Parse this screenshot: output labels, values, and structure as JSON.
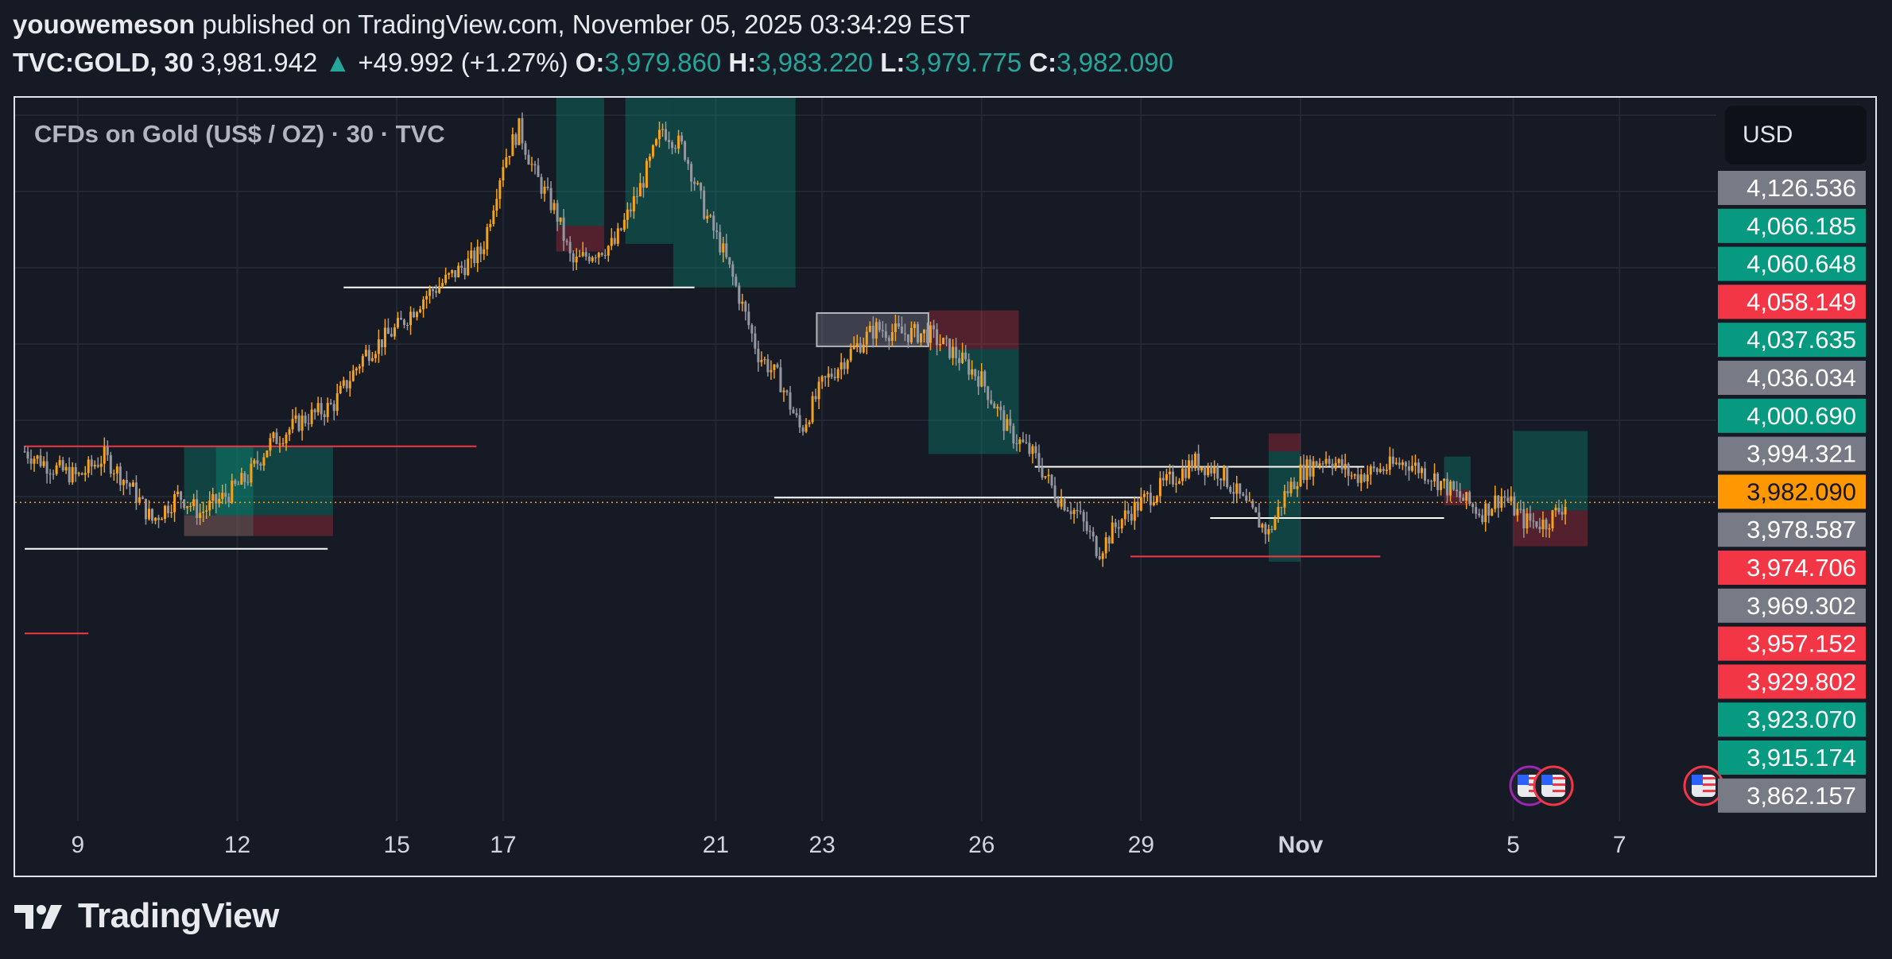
{
  "header": {
    "author": "youowemeson",
    "published_text": "published on TradingView.com, November 05, 2025 03:34:29 EST",
    "symbol": "TVC:GOLD, 30",
    "price": "3,981.942",
    "change": "+49.992 (+1.27%)",
    "open_label": "O:",
    "open": "3,979.860",
    "high_label": "H:",
    "high": "3,983.220",
    "low_label": "L:",
    "low": "3,979.775",
    "close_label": "C:",
    "close": "3,982.090"
  },
  "currency_button": "USD",
  "footer": {
    "brand": "TradingView"
  },
  "chart_data": {
    "type": "candlestick",
    "title": "CFDs on Gold (US$ / OZ) · 30 · TVC",
    "x_ticks": [
      {
        "label": "9",
        "t": 1
      },
      {
        "label": "12",
        "t": 4
      },
      {
        "label": "15",
        "t": 7
      },
      {
        "label": "17",
        "t": 9
      },
      {
        "label": "21",
        "t": 13
      },
      {
        "label": "23",
        "t": 15
      },
      {
        "label": "26",
        "t": 18
      },
      {
        "label": "29",
        "t": 21
      },
      {
        "label": "Nov",
        "t": 24
      },
      {
        "label": "5",
        "t": 28
      },
      {
        "label": "7",
        "t": 30
      }
    ],
    "x_range": [
      0,
      32
    ],
    "y_range": [
      3861,
      4140
    ],
    "price_labels": [
      {
        "value": "4,126.536",
        "color": "#787b86"
      },
      {
        "value": "4,066.185",
        "color": "#089981"
      },
      {
        "value": "4,060.648",
        "color": "#089981"
      },
      {
        "value": "4,058.149",
        "color": "#f23645"
      },
      {
        "value": "4,037.635",
        "color": "#089981"
      },
      {
        "value": "4,036.034",
        "color": "#787b86"
      },
      {
        "value": "4,000.690",
        "color": "#089981"
      },
      {
        "value": "3,994.321",
        "color": "#787b86"
      },
      {
        "value": "3,982.090",
        "color": "#ff9800"
      },
      {
        "value": "3,978.587",
        "color": "#787b86"
      },
      {
        "value": "3,974.706",
        "color": "#f23645"
      },
      {
        "value": "3,969.302",
        "color": "#787b86"
      },
      {
        "value": "3,957.152",
        "color": "#f23645"
      },
      {
        "value": "3,929.802",
        "color": "#f23645"
      },
      {
        "value": "3,923.070",
        "color": "#089981"
      },
      {
        "value": "3,915.174",
        "color": "#089981"
      },
      {
        "value": "3,862.157",
        "color": "#787b86"
      }
    ],
    "last_price": 3982.09,
    "price_path": [
      [
        0,
        4002
      ],
      [
        0.5,
        3996
      ],
      [
        1,
        3992
      ],
      [
        1.5,
        4000
      ],
      [
        2,
        3988
      ],
      [
        2.4,
        3975
      ],
      [
        2.9,
        3985
      ],
      [
        3.3,
        3978
      ],
      [
        3.8,
        3985
      ],
      [
        4.2,
        3992
      ],
      [
        4.6,
        4005
      ],
      [
        5.2,
        4014
      ],
      [
        5.8,
        4020
      ],
      [
        6.4,
        4040
      ],
      [
        7,
        4050
      ],
      [
        7.5,
        4062
      ],
      [
        8,
        4070
      ],
      [
        8.6,
        4080
      ],
      [
        9,
        4115
      ],
      [
        9.3,
        4128
      ],
      [
        9.6,
        4110
      ],
      [
        10,
        4095
      ],
      [
        10.3,
        4075
      ],
      [
        10.7,
        4080
      ],
      [
        11.1,
        4083
      ],
      [
        11.6,
        4106
      ],
      [
        12,
        4128
      ],
      [
        12.4,
        4120
      ],
      [
        12.8,
        4095
      ],
      [
        13.1,
        4082
      ],
      [
        13.4,
        4065
      ],
      [
        13.8,
        4040
      ],
      [
        14.2,
        4030
      ],
      [
        14.6,
        4010
      ],
      [
        15,
        4028
      ],
      [
        15.5,
        4040
      ],
      [
        16,
        4050
      ],
      [
        16.5,
        4048
      ],
      [
        17,
        4048
      ],
      [
        17.5,
        4040
      ],
      [
        18,
        4030
      ],
      [
        18.5,
        4010
      ],
      [
        19,
        4000
      ],
      [
        19.4,
        3985
      ],
      [
        19.8,
        3978
      ],
      [
        20.2,
        3963
      ],
      [
        20.6,
        3975
      ],
      [
        21,
        3982
      ],
      [
        21.5,
        3990
      ],
      [
        22,
        3998
      ],
      [
        22.5,
        3994
      ],
      [
        23,
        3980
      ],
      [
        23.4,
        3970
      ],
      [
        23.7,
        3985
      ],
      [
        24,
        3994
      ],
      [
        24.5,
        4000
      ],
      [
        25,
        3992
      ],
      [
        25.5,
        3995
      ],
      [
        26,
        3998
      ],
      [
        26.5,
        3992
      ],
      [
        27,
        3984
      ],
      [
        27.4,
        3978
      ],
      [
        27.8,
        3985
      ],
      [
        28.2,
        3975
      ],
      [
        28.6,
        3974
      ],
      [
        29,
        3982
      ]
    ],
    "zones": [
      {
        "x0": 3.0,
        "x1": 4.3,
        "y0": 3969,
        "y1": 4004,
        "type": "profit"
      },
      {
        "x0": 3.6,
        "x1": 5.8,
        "y0": 3977,
        "y1": 4004,
        "type": "profit"
      },
      {
        "x0": 3.0,
        "x1": 5.8,
        "y0": 3969,
        "y1": 3977,
        "type": "loss"
      },
      {
        "x0": 10.0,
        "x1": 10.9,
        "y0": 4090,
        "y1": 4141,
        "type": "profit"
      },
      {
        "x0": 10.0,
        "x1": 10.9,
        "y0": 4080,
        "y1": 4090,
        "type": "loss"
      },
      {
        "x0": 11.3,
        "x1": 12.2,
        "y0": 4083,
        "y1": 4141,
        "type": "profit"
      },
      {
        "x0": 12.2,
        "x1": 14.5,
        "y0": 4066,
        "y1": 4141,
        "type": "profit"
      },
      {
        "x0": 17.0,
        "x1": 18.7,
        "y0": 4001,
        "y1": 4042,
        "type": "profit"
      },
      {
        "x0": 17.0,
        "x1": 18.7,
        "y0": 4042,
        "y1": 4057,
        "type": "loss"
      },
      {
        "x0": 14.9,
        "x1": 17.0,
        "y0": 4043,
        "y1": 4056,
        "type": "neutral"
      },
      {
        "x0": 23.4,
        "x1": 24.0,
        "y0": 3959,
        "y1": 4002,
        "type": "profit"
      },
      {
        "x0": 23.4,
        "x1": 24.0,
        "y0": 4002,
        "y1": 4009,
        "type": "loss"
      },
      {
        "x0": 26.7,
        "x1": 27.2,
        "y0": 3987,
        "y1": 4000,
        "type": "profit"
      },
      {
        "x0": 26.7,
        "x1": 27.2,
        "y0": 3981,
        "y1": 3987,
        "type": "loss"
      },
      {
        "x0": 28.0,
        "x1": 29.4,
        "y0": 3979,
        "y1": 4010,
        "type": "profit"
      },
      {
        "x0": 28.0,
        "x1": 29.4,
        "y0": 3965,
        "y1": 3979,
        "type": "loss"
      }
    ],
    "levels": [
      {
        "x0": 6.0,
        "x1": 12.6,
        "y": 4066,
        "color": "#ffffff"
      },
      {
        "x0": 0.0,
        "x1": 8.5,
        "y": 4004,
        "color": "#f23645"
      },
      {
        "x0": 0.0,
        "x1": 5.7,
        "y": 3964,
        "color": "#ffffff"
      },
      {
        "x0": 0.0,
        "x1": 1.2,
        "y": 3931,
        "color": "#f23645"
      },
      {
        "x0": 14.1,
        "x1": 21.0,
        "y": 3984,
        "color": "#ffffff"
      },
      {
        "x0": 19.0,
        "x1": 25.2,
        "y": 3996,
        "color": "#ffffff"
      },
      {
        "x0": 22.3,
        "x1": 26.7,
        "y": 3976,
        "color": "#ffffff"
      },
      {
        "x0": 20.8,
        "x1": 25.5,
        "y": 3961,
        "color": "#f23645"
      }
    ]
  }
}
